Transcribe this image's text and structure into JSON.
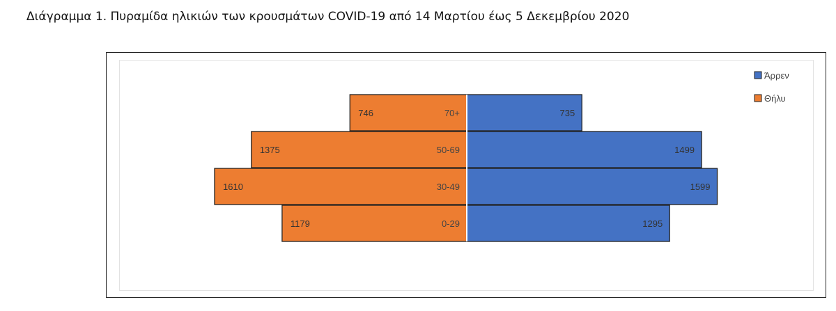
{
  "caption": "Διάγραμμα 1. Πυραμίδα ηλικιών των κρουσμάτων COVID-19 από 14 Μαρτίου έως 5 Δεκεμβρίου 2020",
  "chart_data": {
    "type": "bar",
    "orientation": "horizontal-pyramid",
    "categories": [
      "70+",
      "50-69",
      "30-49",
      "0-29"
    ],
    "series": [
      {
        "name": "Άρρεν",
        "values": [
          735,
          1499,
          1599,
          1295
        ],
        "color": "#4472C4",
        "side": "right"
      },
      {
        "name": "Θήλυ",
        "values": [
          746,
          1375,
          1610,
          1179
        ],
        "color": "#ED7D31",
        "side": "left"
      }
    ],
    "xlim": [
      0,
      1610
    ],
    "grid": false,
    "legend": "top-right"
  }
}
